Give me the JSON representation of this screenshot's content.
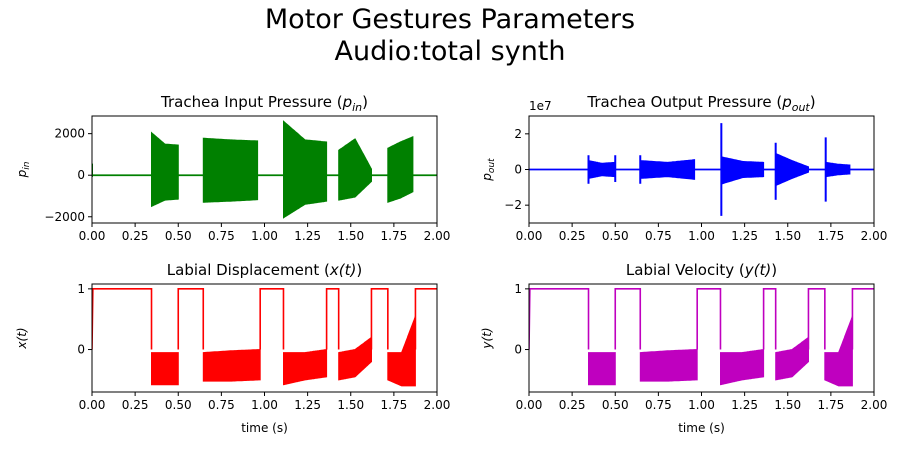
{
  "figure": {
    "title_line1": "Motor Gestures Parameters",
    "title_line2": "Audio:total synth"
  },
  "chart_data": [
    {
      "type": "line",
      "title": "Trachea Input Pressure ($p_{in}$)",
      "title_text": "Trachea Input Pressure (",
      "title_var": "p",
      "title_sub": "in",
      "title_close": ")",
      "xlabel": "",
      "ylabel_var": "p",
      "ylabel_sub": "in",
      "color": "#008000",
      "xlim": [
        0.0,
        2.0
      ],
      "ylim": [
        -2300,
        2850
      ],
      "x_ticks": [
        "0.00",
        "0.25",
        "0.50",
        "0.75",
        "1.00",
        "1.25",
        "1.50",
        "1.75",
        "2.00"
      ],
      "y_ticks": [
        {
          "value": 2000,
          "label": "2000"
        },
        {
          "value": 0,
          "label": "0"
        },
        {
          "value": -2000,
          "label": "−2000"
        }
      ],
      "offset_label": "",
      "baseline": 0,
      "spikes": [
        {
          "x": 0.0,
          "y": [
            -80,
            560
          ]
        }
      ],
      "bursts": [
        {
          "x": [
            0.345,
            0.5
          ],
          "top": [
            2050,
            1500,
            1450
          ],
          "bot": [
            -1500,
            -1200,
            -1150
          ]
        },
        {
          "x": [
            0.645,
            0.96
          ],
          "top": [
            1780,
            1700,
            1650
          ],
          "bot": [
            -1300,
            -1250,
            -1180
          ]
        },
        {
          "x": [
            1.11,
            1.36
          ],
          "top": [
            2600,
            1700,
            1600
          ],
          "bot": [
            -2050,
            -1400,
            -1250
          ]
        },
        {
          "x": [
            1.43,
            1.62
          ],
          "top": [
            1200,
            1750,
            300
          ],
          "bot": [
            -1200,
            -1050,
            -300
          ]
        },
        {
          "x": [
            1.715,
            1.86
          ],
          "top": [
            1300,
            1600,
            1850
          ],
          "bot": [
            -1300,
            -1100,
            -800
          ]
        }
      ]
    },
    {
      "type": "line",
      "title": "Trachea Output Pressure ($p_{out}$)",
      "title_text": "Trachea Output Pressure (",
      "title_var": "p",
      "title_sub": "out",
      "title_close": ")",
      "xlabel": "",
      "ylabel_var": "p",
      "ylabel_sub": "out",
      "color": "#0000ff",
      "xlim": [
        0.0,
        2.0
      ],
      "ylim": [
        -3.0,
        3.0
      ],
      "x_ticks": [
        "0.00",
        "0.25",
        "0.50",
        "0.75",
        "1.00",
        "1.25",
        "1.50",
        "1.75",
        "2.00"
      ],
      "y_ticks": [
        {
          "value": 2,
          "label": "2"
        },
        {
          "value": 0,
          "label": "0"
        },
        {
          "value": -2,
          "label": "−2"
        }
      ],
      "offset_label": "1e7",
      "baseline": 0,
      "spikes": [
        {
          "x": 0.345,
          "y": [
            -0.8,
            0.8
          ]
        },
        {
          "x": 0.5,
          "y": [
            -0.7,
            0.8
          ]
        },
        {
          "x": 0.645,
          "y": [
            -0.8,
            0.8
          ]
        },
        {
          "x": 1.115,
          "y": [
            -2.6,
            2.6
          ]
        },
        {
          "x": 1.43,
          "y": [
            -1.7,
            1.5
          ]
        },
        {
          "x": 1.72,
          "y": [
            -1.8,
            1.8
          ]
        }
      ],
      "bursts": [
        {
          "x": [
            0.345,
            0.5
          ],
          "top": [
            0.5,
            0.35,
            0.4
          ],
          "bot": [
            -0.5,
            -0.35,
            -0.4
          ]
        },
        {
          "x": [
            0.645,
            0.96
          ],
          "top": [
            0.5,
            0.4,
            0.55
          ],
          "bot": [
            -0.5,
            -0.4,
            -0.55
          ]
        },
        {
          "x": [
            1.12,
            1.36
          ],
          "top": [
            0.7,
            0.45,
            0.4
          ],
          "bot": [
            -0.8,
            -0.45,
            -0.4
          ]
        },
        {
          "x": [
            1.43,
            1.62
          ],
          "top": [
            0.9,
            0.5,
            0.15
          ],
          "bot": [
            -0.9,
            -0.5,
            -0.15
          ]
        },
        {
          "x": [
            1.72,
            1.86
          ],
          "top": [
            0.4,
            0.3,
            0.25
          ],
          "bot": [
            -0.4,
            -0.3,
            -0.25
          ]
        }
      ]
    },
    {
      "type": "line",
      "title": "Labial Displacement ($x(t)$)",
      "title_text": "Labial Displacement (",
      "title_var": "x",
      "title_sub": "",
      "title_tail": "(t)",
      "title_close": ")",
      "xlabel": "time (s)",
      "ylabel_var": "x",
      "ylabel_sub": "",
      "ylabel_tail": "(t)",
      "color": "#ff0000",
      "xlim": [
        0.0,
        2.0
      ],
      "ylim": [
        -0.7,
        1.08
      ],
      "x_ticks": [
        "0.00",
        "0.25",
        "0.50",
        "0.75",
        "1.00",
        "1.25",
        "1.50",
        "1.75",
        "2.00"
      ],
      "y_ticks": [
        {
          "value": 1,
          "label": "1"
        },
        {
          "value": 0,
          "label": "0"
        }
      ],
      "offset_label": "",
      "step": {
        "high": 1.0,
        "start": [
          0.0,
          0.0
        ],
        "gaps": [
          [
            0.345,
            0.5
          ],
          [
            0.645,
            0.975
          ],
          [
            1.11,
            1.36
          ],
          [
            1.43,
            1.62
          ],
          [
            1.715,
            1.875
          ]
        ]
      },
      "bursts": [
        {
          "x": [
            0.345,
            0.5
          ],
          "top": [
            -0.05,
            -0.05,
            -0.05
          ],
          "bot": [
            -0.58,
            -0.58,
            -0.58
          ]
        },
        {
          "x": [
            0.645,
            0.975
          ],
          "top": [
            -0.05,
            -0.02,
            0.0
          ],
          "bot": [
            -0.52,
            -0.52,
            -0.5
          ]
        },
        {
          "x": [
            1.11,
            1.36
          ],
          "top": [
            -0.05,
            -0.05,
            0.0
          ],
          "bot": [
            -0.58,
            -0.5,
            -0.45
          ]
        },
        {
          "x": [
            1.43,
            1.62
          ],
          "top": [
            -0.05,
            0.0,
            0.2
          ],
          "bot": [
            -0.5,
            -0.45,
            -0.2
          ]
        },
        {
          "x": [
            1.715,
            1.875
          ],
          "top": [
            -0.05,
            -0.05,
            0.55
          ],
          "bot": [
            -0.5,
            -0.6,
            -0.6
          ]
        }
      ]
    },
    {
      "type": "line",
      "title": "Labial Velocity ($y(t)$)",
      "title_text": "Labial Velocity (",
      "title_var": "y",
      "title_sub": "",
      "title_tail": "(t)",
      "title_close": ")",
      "xlabel": "time (s)",
      "ylabel_var": "y",
      "ylabel_sub": "",
      "ylabel_tail": "(t)",
      "color": "#bf00bf",
      "xlim": [
        0.0,
        2.0
      ],
      "ylim": [
        -0.7,
        1.08
      ],
      "x_ticks": [
        "0.00",
        "0.25",
        "0.50",
        "0.75",
        "1.00",
        "1.25",
        "1.50",
        "1.75",
        "2.00"
      ],
      "y_ticks": [
        {
          "value": 1,
          "label": "1"
        },
        {
          "value": 0,
          "label": "0"
        }
      ],
      "offset_label": "",
      "step": {
        "high": 1.0,
        "start": [
          0.0,
          0.0
        ],
        "gaps": [
          [
            0.345,
            0.5
          ],
          [
            0.645,
            0.975
          ],
          [
            1.11,
            1.36
          ],
          [
            1.43,
            1.62
          ],
          [
            1.715,
            1.875
          ]
        ]
      },
      "bursts": [
        {
          "x": [
            0.345,
            0.5
          ],
          "top": [
            -0.05,
            -0.05,
            -0.05
          ],
          "bot": [
            -0.58,
            -0.58,
            -0.58
          ]
        },
        {
          "x": [
            0.645,
            0.975
          ],
          "top": [
            -0.05,
            -0.02,
            0.0
          ],
          "bot": [
            -0.52,
            -0.52,
            -0.5
          ]
        },
        {
          "x": [
            1.11,
            1.36
          ],
          "top": [
            -0.05,
            -0.05,
            0.0
          ],
          "bot": [
            -0.58,
            -0.5,
            -0.45
          ]
        },
        {
          "x": [
            1.43,
            1.62
          ],
          "top": [
            -0.05,
            0.0,
            0.2
          ],
          "bot": [
            -0.5,
            -0.45,
            -0.2
          ]
        },
        {
          "x": [
            1.715,
            1.875
          ],
          "top": [
            -0.05,
            -0.05,
            0.55
          ],
          "bot": [
            -0.5,
            -0.6,
            -0.6
          ]
        }
      ]
    }
  ]
}
